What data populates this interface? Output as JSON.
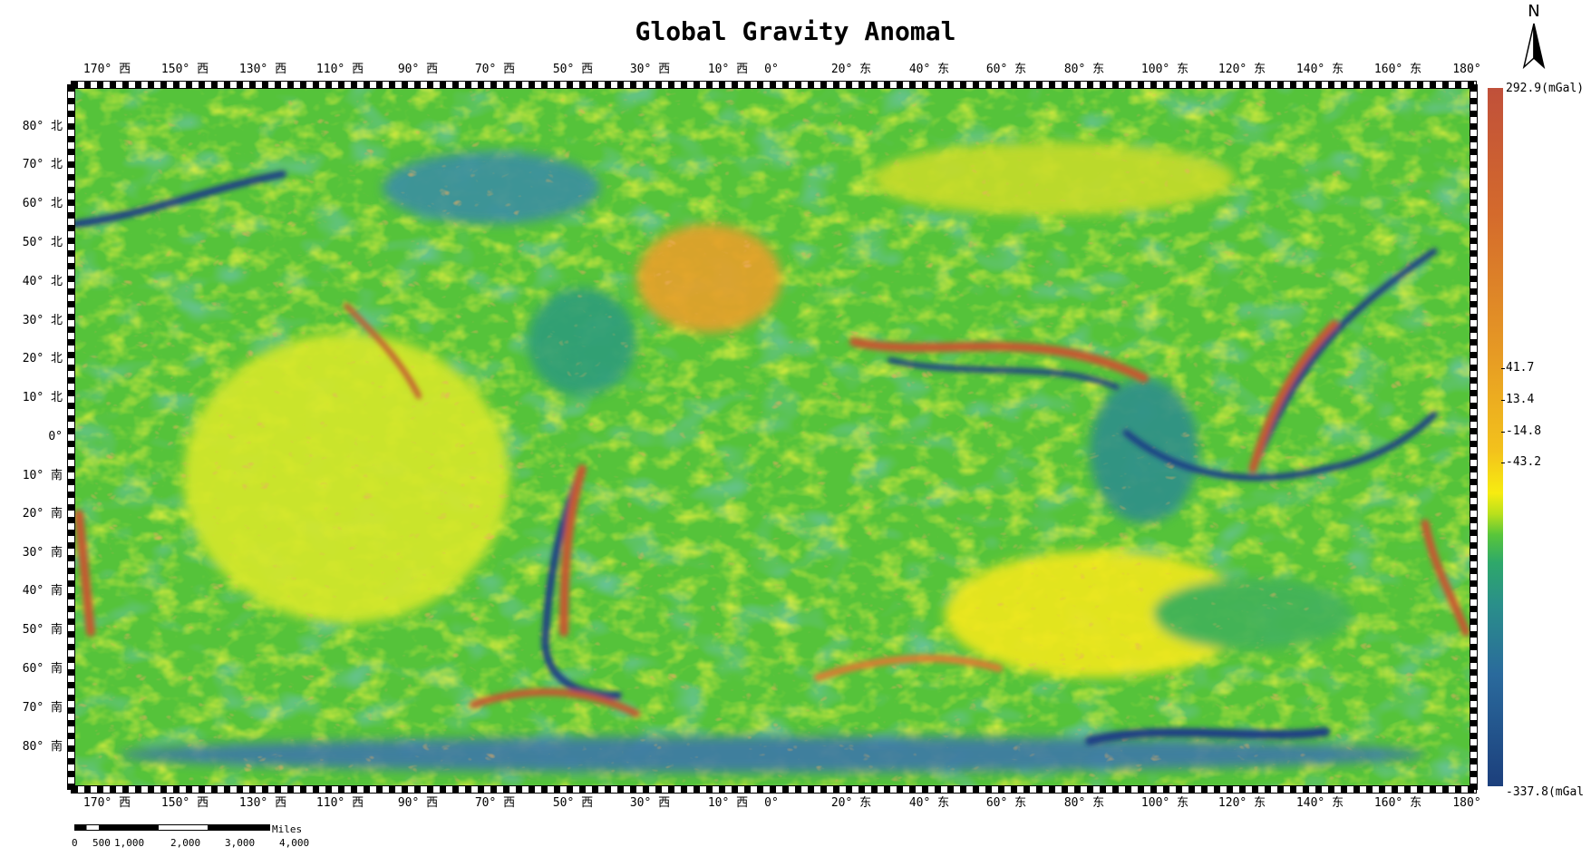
{
  "title": "Global Gravity Anomal",
  "top_labels": [
    "170° 西",
    "150° 西",
    "130° 西",
    "110° 西",
    "90° 西",
    "70° 西",
    "50° 西",
    "30° 西",
    "10° 西",
    "0°",
    "20° 东",
    "40° 东",
    "60° 东",
    "80° 东",
    "100° 东",
    "120° 东",
    "140° 东",
    "160° 东",
    "180°"
  ],
  "bottom_labels": [
    "170° 西",
    "150° 西",
    "130° 西",
    "110° 西",
    "90° 西",
    "70° 西",
    "50° 西",
    "30° 西",
    "10° 西",
    "0°",
    "20° 东",
    "40° 东",
    "60° 东",
    "80° 东",
    "100° 东",
    "120° 东",
    "140° 东",
    "160° 东",
    "180°"
  ],
  "left_labels": [
    "80° 北",
    "70° 北",
    "60° 北",
    "50° 北",
    "40° 北",
    "30° 北",
    "20° 北",
    "10° 北",
    "0°",
    "10° 南",
    "20° 南",
    "30° 南",
    "40° 南",
    "50° 南",
    "60° 南",
    "70° 南",
    "80° 南"
  ],
  "legend": {
    "max_label": "292.9(mGal)",
    "min_label": "-337.8(mGal",
    "ticks": [
      "41.7",
      "13.4",
      "-14.8",
      "-43.2"
    ]
  },
  "north_arrow": {
    "label": "N",
    "icon": "north-arrow-icon"
  },
  "scale_bar": {
    "unit": "Miles",
    "labels": [
      "0",
      "500",
      "1,000",
      "2,000",
      "3,000",
      "4,000"
    ]
  },
  "map": {
    "type": "gravity-anomaly-raster"
  },
  "colors": {
    "high": "#c0503a",
    "mid_high": "#f3c21c",
    "mid": "#f7ec10",
    "mid_low": "#58c63a",
    "low": "#1c3f7c"
  }
}
